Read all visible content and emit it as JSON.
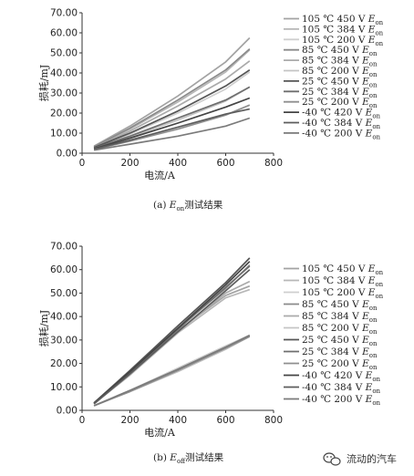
{
  "chart_data": [
    {
      "type": "line",
      "caption_prefix": "(a) ",
      "caption_var": "E",
      "caption_sub": "on",
      "caption_suffix": "测试结果",
      "xlabel": "电流/A",
      "ylabel": "损耗/mJ",
      "xlim": [
        0,
        800
      ],
      "ylim": [
        0,
        70
      ],
      "xticks": [
        "0",
        "200",
        "400",
        "600",
        "800"
      ],
      "yticks": [
        "0.00",
        "10.00",
        "20.00",
        "30.00",
        "40.00",
        "50.00",
        "60.00",
        "70.00"
      ],
      "legend_position": "right",
      "x": [
        50,
        200,
        400,
        600,
        700
      ],
      "series": [
        {
          "name": "105 ℃ 450 V Eon",
          "label": "105 ℃ 450 V ",
          "var": "E",
          "sub": "on",
          "color": "#a3a3a3",
          "values": [
            3.5,
            13.5,
            28.5,
            45.5,
            57.5
          ]
        },
        {
          "name": "105 ℃ 384 V Eon",
          "label": "105 ℃ 384 V ",
          "var": "E",
          "sub": "on",
          "color": "#b7b7b7",
          "values": [
            3.0,
            12.0,
            25.5,
            40.5,
            51.5
          ]
        },
        {
          "name": "105 ℃ 200 V Eon",
          "label": "105 ℃ 200 V ",
          "var": "E",
          "sub": "on",
          "color": "#cfcfcf",
          "values": [
            2.5,
            9.5,
            20.0,
            32.0,
            40.5
          ]
        },
        {
          "name": "85 ℃ 450 V Eon",
          "label": "85 ℃ 450 V ",
          "var": "E",
          "sub": "on",
          "color": "#8a8a8a",
          "values": [
            3.2,
            12.5,
            26.5,
            41.5,
            52.0
          ]
        },
        {
          "name": "85 ℃ 384 V Eon",
          "label": "85 ℃ 384 V ",
          "var": "E",
          "sub": "on",
          "color": "#aaaaaa",
          "values": [
            2.8,
            11.0,
            23.5,
            37.0,
            46.0
          ]
        },
        {
          "name": "85 ℃ 200 V Eon",
          "label": "85 ℃ 200 V ",
          "var": "E",
          "sub": "on",
          "color": "#c4c4c4",
          "values": [
            2.2,
            8.0,
            16.5,
            26.0,
            33.0
          ]
        },
        {
          "name": "25 ℃ 450 V Eon",
          "label": "25 ℃ 450 V ",
          "var": "E",
          "sub": "on",
          "color": "#555555",
          "values": [
            2.8,
            10.0,
            21.0,
            33.5,
            41.5
          ]
        },
        {
          "name": "25 ℃ 384 V Eon",
          "label": "25 ℃ 384 V ",
          "var": "E",
          "sub": "on",
          "color": "#6e6e6e",
          "values": [
            2.4,
            8.5,
            17.5,
            26.5,
            33.0
          ]
        },
        {
          "name": "25 ℃ 200 V Eon",
          "label": "25 ℃ 200 V ",
          "var": "E",
          "sub": "on",
          "color": "#8f8f8f",
          "values": [
            1.8,
            6.0,
            12.0,
            19.0,
            24.0
          ]
        },
        {
          "name": "-40 ℃ 420 V Eon",
          "label": "-40 ℃ 420 V ",
          "var": "E",
          "sub": "on",
          "color": "#444444",
          "values": [
            2.2,
            7.5,
            15.0,
            23.0,
            27.5
          ]
        },
        {
          "name": "-40 ℃ 384 V Eon",
          "label": "-40 ℃ 384 V ",
          "var": "E",
          "sub": "on",
          "color": "#5c5c5c",
          "values": [
            2.0,
            6.5,
            13.0,
            19.5,
            22.0
          ]
        },
        {
          "name": "-40 ℃ 200 V Eon",
          "label": "-40 ℃ 200 V ",
          "var": "E",
          "sub": "on",
          "color": "#7a7a7a",
          "values": [
            1.5,
            4.5,
            8.5,
            13.5,
            17.5
          ]
        }
      ]
    },
    {
      "type": "line",
      "caption_prefix": "(b) ",
      "caption_var": "E",
      "caption_sub": "off",
      "caption_suffix": "测试结果",
      "xlabel": "电流/A",
      "ylabel": "损耗/mJ",
      "xlim": [
        0,
        800
      ],
      "ylim": [
        0,
        70
      ],
      "xticks": [
        "0",
        "200",
        "400",
        "600",
        "800"
      ],
      "yticks": [
        "0.00",
        "10.00",
        "20.00",
        "30.00",
        "40.00",
        "50.00",
        "60.00",
        "70.00"
      ],
      "legend_position": "right",
      "x": [
        50,
        200,
        400,
        600,
        700
      ],
      "series": [
        {
          "name": "105 ℃ 450 V Eon",
          "label": "105 ℃ 450 V ",
          "var": "E",
          "sub": "on",
          "color": "#a3a3a3",
          "values": [
            3.0,
            16.0,
            34.0,
            49.0,
            53.0
          ]
        },
        {
          "name": "105 ℃ 384 V Eon",
          "label": "105 ℃ 384 V ",
          "var": "E",
          "sub": "on",
          "color": "#b7b7b7",
          "values": [
            2.8,
            15.0,
            33.0,
            48.0,
            51.5
          ]
        },
        {
          "name": "105 ℃ 200 V Eon",
          "label": "105 ℃ 200 V ",
          "var": "E",
          "sub": "on",
          "color": "#cfcfcf",
          "values": [
            2.0,
            8.5,
            18.0,
            27.5,
            32.0
          ]
        },
        {
          "name": "85 ℃ 450 V Eon",
          "label": "85 ℃ 450 V ",
          "var": "E",
          "sub": "on",
          "color": "#8a8a8a",
          "values": [
            3.0,
            16.5,
            35.0,
            52.0,
            62.0
          ]
        },
        {
          "name": "85 ℃ 384 V Eon",
          "label": "85 ℃ 384 V ",
          "var": "E",
          "sub": "on",
          "color": "#aaaaaa",
          "values": [
            2.8,
            15.5,
            33.5,
            50.0,
            55.0
          ]
        },
        {
          "name": "85 ℃ 200 V Eon",
          "label": "85 ℃ 200 V ",
          "var": "E",
          "sub": "on",
          "color": "#c4c4c4",
          "values": [
            2.0,
            8.0,
            16.5,
            26.0,
            31.5
          ]
        },
        {
          "name": "25 ℃ 450 V Eon",
          "label": "25 ℃ 450 V ",
          "var": "E",
          "sub": "on",
          "color": "#555555",
          "values": [
            3.2,
            17.0,
            36.0,
            54.5,
            65.0
          ]
        },
        {
          "name": "25 ℃ 384 V Eon",
          "label": "25 ℃ 384 V ",
          "var": "E",
          "sub": "on",
          "color": "#6e6e6e",
          "values": [
            3.0,
            16.0,
            34.5,
            52.5,
            61.5
          ]
        },
        {
          "name": "25 ℃ 200 V Eon",
          "label": "25 ℃ 200 V ",
          "var": "E",
          "sub": "on",
          "color": "#8f8f8f",
          "values": [
            2.0,
            8.0,
            17.0,
            26.5,
            31.5
          ]
        },
        {
          "name": "-40 ℃ 420 V Eon",
          "label": "-40 ℃ 420 V ",
          "var": "E",
          "sub": "on",
          "color": "#444444",
          "values": [
            3.0,
            16.5,
            35.0,
            53.5,
            63.5
          ]
        },
        {
          "name": "-40 ℃ 384 V Eon",
          "label": "-40 ℃ 384 V ",
          "var": "E",
          "sub": "on",
          "color": "#5c5c5c",
          "values": [
            2.8,
            15.5,
            33.5,
            51.0,
            60.0
          ]
        },
        {
          "name": "-40 ℃ 200 V Eon",
          "label": "-40 ℃ 200 V ",
          "var": "E",
          "sub": "on",
          "color": "#7a7a7a",
          "values": [
            2.0,
            8.5,
            17.5,
            27.0,
            32.0
          ]
        }
      ]
    }
  ],
  "watermark": {
    "text": "流动的汽车",
    "icon": "wechat-icon"
  }
}
